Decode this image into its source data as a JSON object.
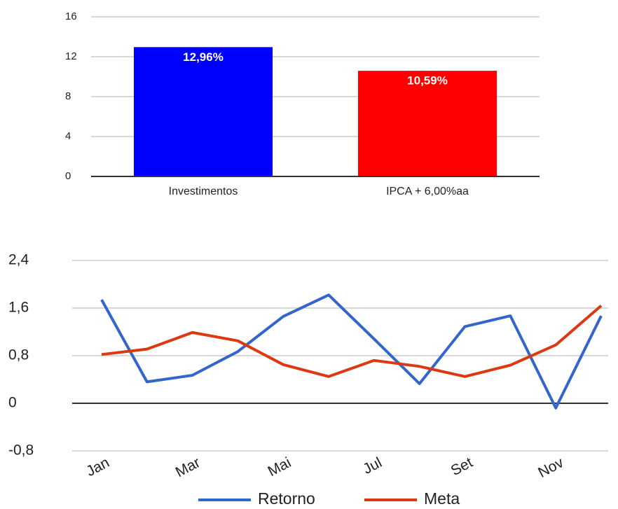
{
  "chart_data": [
    {
      "type": "bar",
      "categories": [
        "Investimentos",
        "IPCA + 6,00%aa"
      ],
      "values": [
        12.96,
        10.59
      ],
      "value_labels": [
        "12,96%",
        "10,59%"
      ],
      "colors": [
        "#0000ff",
        "#ff0000"
      ],
      "ylim": [
        0,
        16
      ],
      "yticks": [
        0,
        4,
        8,
        12,
        16
      ],
      "grid": true
    },
    {
      "type": "line",
      "categories": [
        "Jan",
        null,
        "Mar",
        null,
        "Mai",
        null,
        "Jul",
        null,
        "Set",
        null,
        "Nov",
        null
      ],
      "series": [
        {
          "name": "Retorno",
          "color": "#3366cc",
          "values": [
            1.74,
            0.36,
            0.47,
            0.87,
            1.46,
            1.82,
            1.08,
            0.33,
            1.29,
            1.47,
            -0.08,
            1.47
          ]
        },
        {
          "name": "Meta",
          "color": "#dc3912",
          "values": [
            0.82,
            0.91,
            1.19,
            1.05,
            0.65,
            0.45,
            0.72,
            0.62,
            0.45,
            0.64,
            0.98,
            1.64
          ]
        }
      ],
      "ylim": [
        -0.8,
        2.4
      ],
      "yticks": [
        {
          "value": -0.8,
          "label": "-0,8"
        },
        0,
        {
          "value": 0.8,
          "label": "0,8"
        },
        {
          "value": 1.6,
          "label": "1,6"
        },
        {
          "value": 2.4,
          "label": "2,4"
        }
      ],
      "grid": true,
      "legend": "bottom"
    }
  ]
}
